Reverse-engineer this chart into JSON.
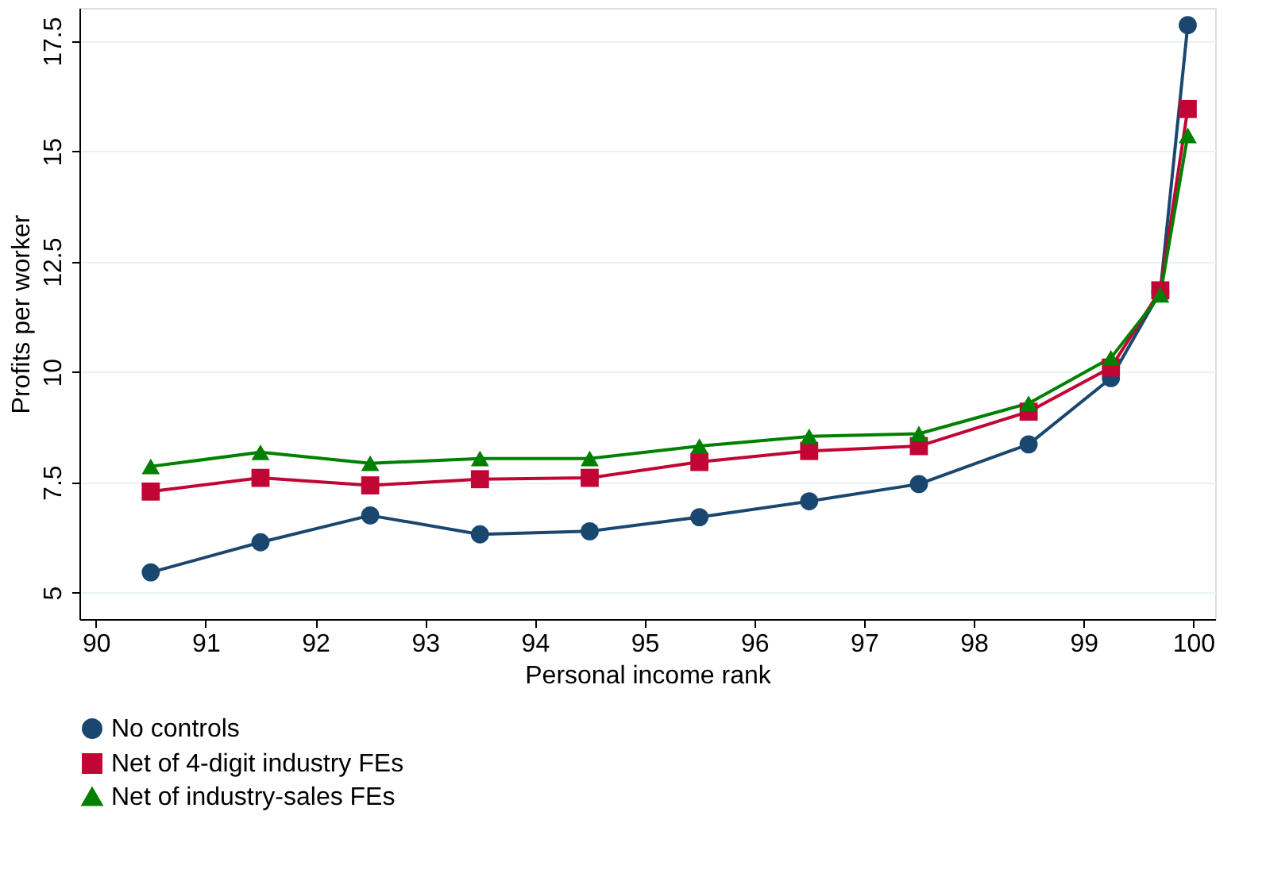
{
  "chart_data": {
    "type": "line",
    "xlabel": "Personal income rank",
    "ylabel": "Profits per worker",
    "x": [
      90.5,
      91.5,
      92.5,
      93.5,
      94.5,
      95.5,
      96.5,
      97.5,
      98.5,
      99.25,
      99.7,
      99.95
    ],
    "series": [
      {
        "name": "No controls",
        "color": "#1a476f",
        "marker": "circle",
        "values": [
          5.46,
          6.14,
          6.75,
          6.32,
          6.39,
          6.71,
          7.07,
          7.46,
          8.36,
          9.86,
          11.82,
          17.86
        ]
      },
      {
        "name": "Net of 4-digit industry FEs",
        "color": "#c10534",
        "marker": "square",
        "values": [
          7.29,
          7.6,
          7.43,
          7.57,
          7.6,
          7.96,
          8.21,
          8.32,
          9.1,
          10.1,
          11.85,
          15.96
        ]
      },
      {
        "name": "Net of industry-sales FEs",
        "color": "#008000",
        "marker": "triangle",
        "values": [
          7.86,
          8.18,
          7.93,
          8.04,
          8.04,
          8.32,
          8.54,
          8.6,
          9.29,
          10.32,
          11.75,
          15.36
        ]
      }
    ],
    "xlim": [
      89.85,
      100.2
    ],
    "ylim": [
      4.4,
      18.25
    ],
    "xticks": [
      90,
      91,
      92,
      93,
      94,
      95,
      96,
      97,
      98,
      99,
      100
    ],
    "yticks": [
      5,
      7.5,
      10,
      12.5,
      15,
      17.5
    ],
    "grid": "y",
    "legend": "bottom",
    "line_style": "solid"
  }
}
